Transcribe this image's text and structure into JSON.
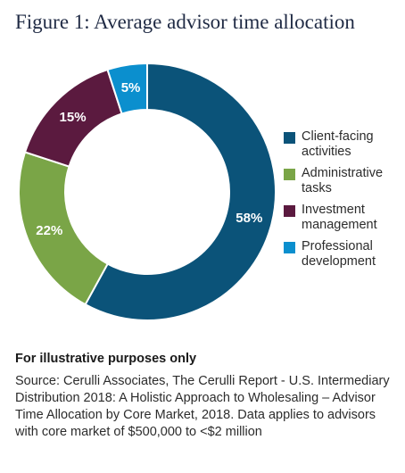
{
  "title": "Figure 1: Average advisor time allocation",
  "chart_data": {
    "type": "pie",
    "categories": [
      "Client-facing activities",
      "Administrative tasks",
      "Investment management",
      "Professional development"
    ],
    "values": [
      58,
      22,
      15,
      5
    ],
    "value_labels": [
      "58%",
      "22%",
      "15%",
      "5%"
    ],
    "colors": [
      "#0b5379",
      "#7aa547",
      "#5b1a3f",
      "#0b8fce"
    ],
    "legend_position": "right"
  },
  "legend": [
    {
      "label": "Client-facing activities",
      "color": "#0b5379"
    },
    {
      "label": "Administrative tasks",
      "color": "#7aa547"
    },
    {
      "label": "Investment management",
      "color": "#5b1a3f"
    },
    {
      "label": "Professional development",
      "color": "#0b8fce"
    }
  ],
  "note": "For illustrative purposes only",
  "source": "Source: Cerulli Associates, The Cerulli Report - U.S. Intermediary Distribution 2018: A Holistic Approach to Wholesaling – Advisor Time Allocation by Core Market, 2018. Data applies to advisors with core market of $500,000 to <$2 million"
}
